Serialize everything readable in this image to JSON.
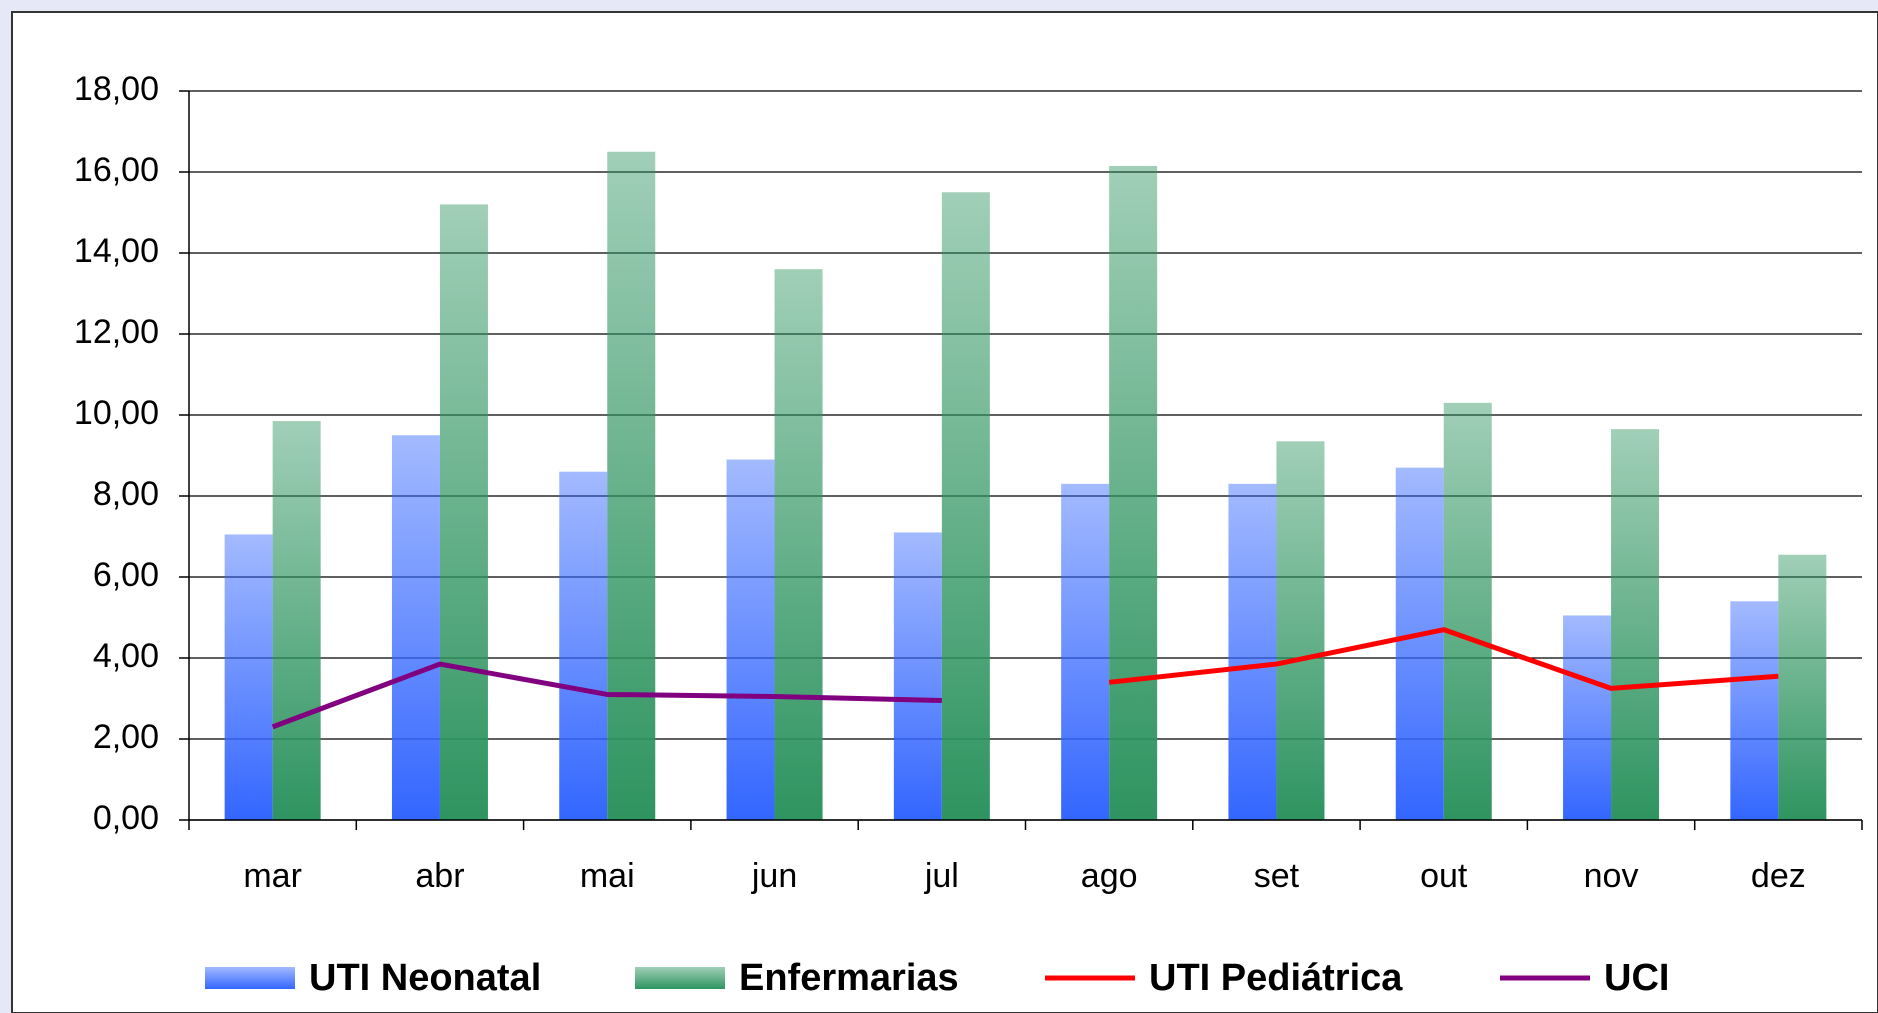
{
  "chart_data": {
    "type": "bar_line",
    "categories": [
      "mar",
      "abr",
      "mai",
      "jun",
      "jul",
      "ago",
      "set",
      "out",
      "nov",
      "dez"
    ],
    "series": [
      {
        "name": "UTI Neonatal",
        "color": "#3366ff",
        "kind": "bar",
        "values": [
          7.05,
          9.5,
          8.6,
          8.9,
          7.1,
          8.3,
          8.3,
          8.7,
          5.05,
          5.4
        ]
      },
      {
        "name": "Enfermarias",
        "color": "#2e9460",
        "kind": "bar",
        "values": [
          9.85,
          15.2,
          16.5,
          13.6,
          15.5,
          16.15,
          9.35,
          10.3,
          9.65,
          6.55
        ]
      },
      {
        "name": "UTI Pediátrica",
        "color": "#ff0000",
        "kind": "line",
        "values": [
          null,
          null,
          null,
          null,
          null,
          3.4,
          3.85,
          4.7,
          3.25,
          3.55
        ]
      },
      {
        "name": "UCI",
        "color": "#800080",
        "kind": "line",
        "values": [
          2.3,
          3.85,
          3.1,
          3.05,
          2.95,
          null,
          null,
          null,
          null,
          null
        ]
      }
    ],
    "ylim": [
      0,
      18
    ],
    "yticks": [
      {
        "value": 0,
        "label": "0,00"
      },
      {
        "value": 2,
        "label": "2,00"
      },
      {
        "value": 4,
        "label": "4,00"
      },
      {
        "value": 6,
        "label": "6,00"
      },
      {
        "value": 8,
        "label": "8,00"
      },
      {
        "value": 10,
        "label": "10,00"
      },
      {
        "value": 12,
        "label": "12,00"
      },
      {
        "value": 14,
        "label": "14,00"
      },
      {
        "value": 16,
        "label": "16,00"
      },
      {
        "value": 18,
        "label": "18,00"
      }
    ],
    "grid": true,
    "legend": "bottom"
  }
}
